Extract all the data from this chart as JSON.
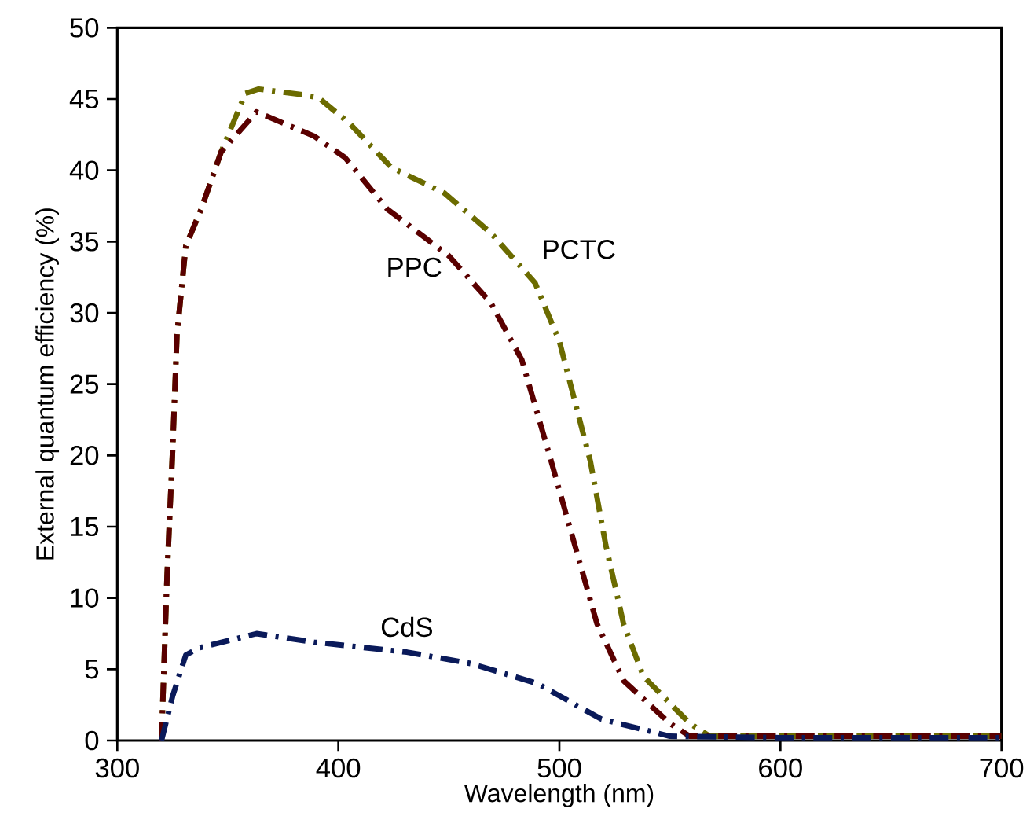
{
  "chart_data": {
    "type": "line",
    "xlabel": "Wavelength (nm)",
    "ylabel": "External quantum efficiency (%)",
    "xlim": [
      300,
      700
    ],
    "ylim": [
      0,
      50
    ],
    "xticks": [
      300,
      400,
      500,
      600,
      700
    ],
    "yticks": [
      0,
      5,
      10,
      15,
      20,
      25,
      30,
      35,
      40,
      45,
      50
    ],
    "grid": false,
    "marker": "none",
    "line_style": "dashed",
    "series": [
      {
        "name": "PCTC",
        "color": "#6b6b00",
        "x": [
          320,
          322.5,
          325,
          327,
          331,
          338,
          347,
          358,
          364,
          384,
          391,
          405,
          424,
          448,
          469,
          489,
          500,
          514,
          521,
          529,
          538,
          559,
          568,
          600,
          650,
          700
        ],
        "values": [
          0,
          11.5,
          20.3,
          28.5,
          34.7,
          37.3,
          41.3,
          45.4,
          45.7,
          45.3,
          45.1,
          43.3,
          40.2,
          38.4,
          35.6,
          32.1,
          28,
          19.6,
          13.7,
          8.2,
          4.5,
          1.2,
          0.3,
          0.3,
          0.3,
          0.3
        ]
      },
      {
        "name": "PPC",
        "color": "#5a0000",
        "x": [
          320,
          322.5,
          325,
          327,
          331,
          338,
          347,
          363,
          389,
          403,
          422,
          450,
          469,
          483,
          495,
          507,
          517,
          529,
          550,
          559,
          600,
          650,
          700
        ],
        "values": [
          0,
          11.5,
          20.3,
          28.5,
          34.7,
          37.3,
          41.3,
          44.1,
          42.4,
          40.9,
          37.3,
          34,
          30.7,
          26.7,
          20.3,
          13.7,
          8.2,
          4.2,
          1.2,
          0.3,
          0.3,
          0.3,
          0.3
        ]
      },
      {
        "name": "CdS",
        "color": "#0a1a5a",
        "x": [
          320,
          325,
          331,
          337,
          363,
          389,
          431,
          460,
          490,
          519,
          550,
          600,
          650,
          700
        ],
        "values": [
          0,
          3.1,
          6,
          6.5,
          7.5,
          6.9,
          6.2,
          5.4,
          4,
          1.5,
          0.3,
          0.2,
          0.2,
          0.2
        ]
      }
    ]
  }
}
